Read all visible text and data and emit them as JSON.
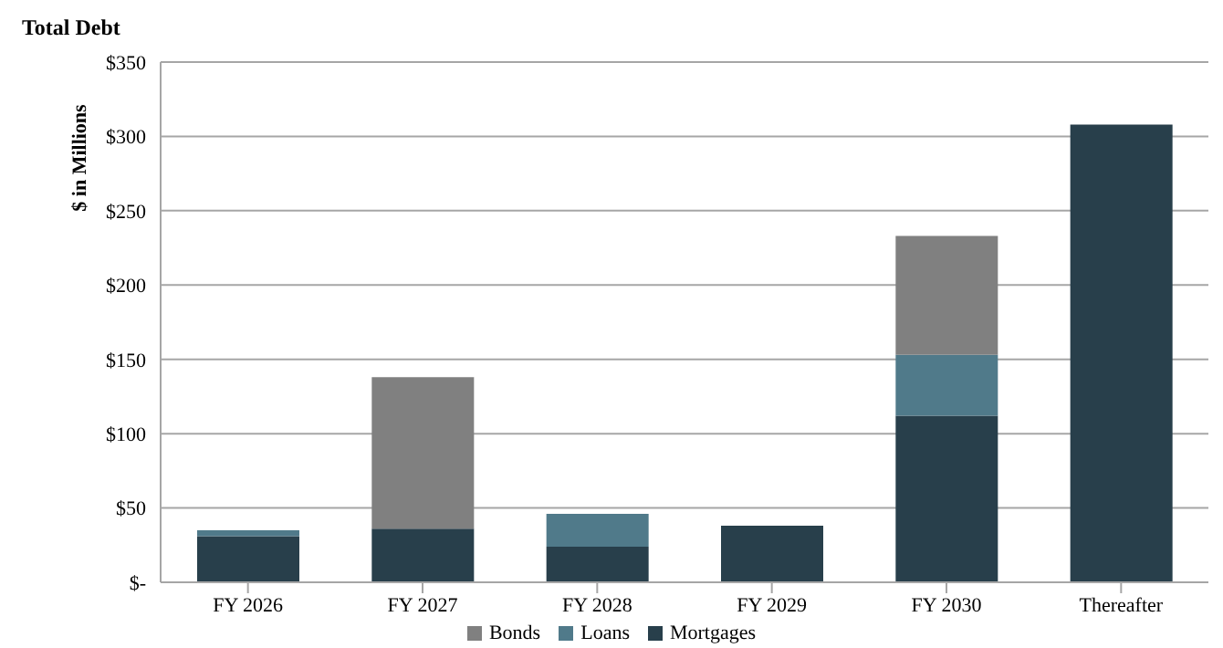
{
  "chart_data": {
    "type": "bar",
    "title": "Total Debt",
    "ylabel": "$ in Millions",
    "stacked": true,
    "grid": "y",
    "legend": "bottom",
    "categories": [
      "FY 2026",
      "FY 2027",
      "FY 2028",
      "FY 2029",
      "FY 2030",
      "Thereafter"
    ],
    "series": [
      {
        "name": "Mortgages",
        "color": "#283f4b",
        "values": [
          31,
          36,
          24,
          38,
          112,
          308
        ]
      },
      {
        "name": "Loans",
        "color": "#507a8a",
        "values": [
          4,
          null,
          22,
          null,
          41,
          null
        ]
      },
      {
        "name": "Bonds",
        "color": "#808080",
        "values": [
          null,
          102,
          null,
          null,
          80,
          null
        ]
      }
    ],
    "ylim": [
      0,
      350
    ],
    "yticks": [
      {
        "value": 0,
        "label": "$-"
      },
      {
        "value": 50,
        "label": "$50"
      },
      {
        "value": 100,
        "label": "$100"
      },
      {
        "value": 150,
        "label": "$150"
      },
      {
        "value": 200,
        "label": "$200"
      },
      {
        "value": 250,
        "label": "$250"
      },
      {
        "value": 300,
        "label": "$300"
      },
      {
        "value": 350,
        "label": "$350"
      }
    ]
  }
}
